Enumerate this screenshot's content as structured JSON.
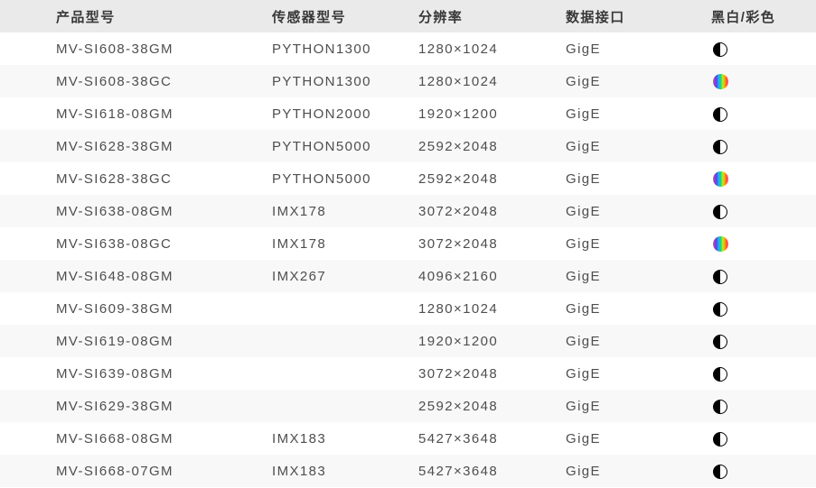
{
  "table": {
    "columns": [
      {
        "key": "model",
        "label": "产品型号"
      },
      {
        "key": "sensor",
        "label": "传感器型号"
      },
      {
        "key": "resolution",
        "label": "分辨率"
      },
      {
        "key": "interface",
        "label": "数据接口"
      },
      {
        "key": "chroma",
        "label": "黑白/彩色"
      }
    ],
    "chroma_icons": {
      "mono": "mono-half-circle-icon",
      "color": "color-rainbow-circle-icon"
    },
    "rows": [
      {
        "model": "MV-SI608-38GM",
        "sensor": "PYTHON1300",
        "resolution": "1280×1024",
        "interface": "GigE",
        "chroma": "mono"
      },
      {
        "model": "MV-SI608-38GC",
        "sensor": "PYTHON1300",
        "resolution": "1280×1024",
        "interface": "GigE",
        "chroma": "color"
      },
      {
        "model": "MV-SI618-08GM",
        "sensor": "PYTHON2000",
        "resolution": "1920×1200",
        "interface": "GigE",
        "chroma": "mono"
      },
      {
        "model": "MV-SI628-38GM",
        "sensor": "PYTHON5000",
        "resolution": "2592×2048",
        "interface": "GigE",
        "chroma": "mono"
      },
      {
        "model": "MV-SI628-38GC",
        "sensor": "PYTHON5000",
        "resolution": "2592×2048",
        "interface": "GigE",
        "chroma": "color"
      },
      {
        "model": "MV-SI638-08GM",
        "sensor": "IMX178",
        "resolution": "3072×2048",
        "interface": "GigE",
        "chroma": "mono"
      },
      {
        "model": "MV-SI638-08GC",
        "sensor": "IMX178",
        "resolution": "3072×2048",
        "interface": "GigE",
        "chroma": "color"
      },
      {
        "model": "MV-SI648-08GM",
        "sensor": "IMX267",
        "resolution": "4096×2160",
        "interface": "GigE",
        "chroma": "mono"
      },
      {
        "model": "MV-SI609-38GM",
        "sensor": "",
        "resolution": "1280×1024",
        "interface": "GigE",
        "chroma": "mono"
      },
      {
        "model": "MV-SI619-08GM",
        "sensor": "",
        "resolution": "1920×1200",
        "interface": "GigE",
        "chroma": "mono"
      },
      {
        "model": "MV-SI639-08GM",
        "sensor": "",
        "resolution": "3072×2048",
        "interface": "GigE",
        "chroma": "mono"
      },
      {
        "model": "MV-SI629-38GM",
        "sensor": "",
        "resolution": "2592×2048",
        "interface": "GigE",
        "chroma": "mono"
      },
      {
        "model": "MV-SI668-08GM",
        "sensor": "IMX183",
        "resolution": "5427×3648",
        "interface": "GigE",
        "chroma": "mono"
      },
      {
        "model": "MV-SI668-07GM",
        "sensor": "IMX183",
        "resolution": "5427×3648",
        "interface": "GigE",
        "chroma": "mono"
      }
    ]
  },
  "colors": {
    "header_background": "#eaeaea",
    "stripe_background": "#f8f8f8",
    "row_background": "#ffffff",
    "header_text": "#383838",
    "cell_text": "#4e4e4e",
    "mono_icon": "#000000"
  }
}
